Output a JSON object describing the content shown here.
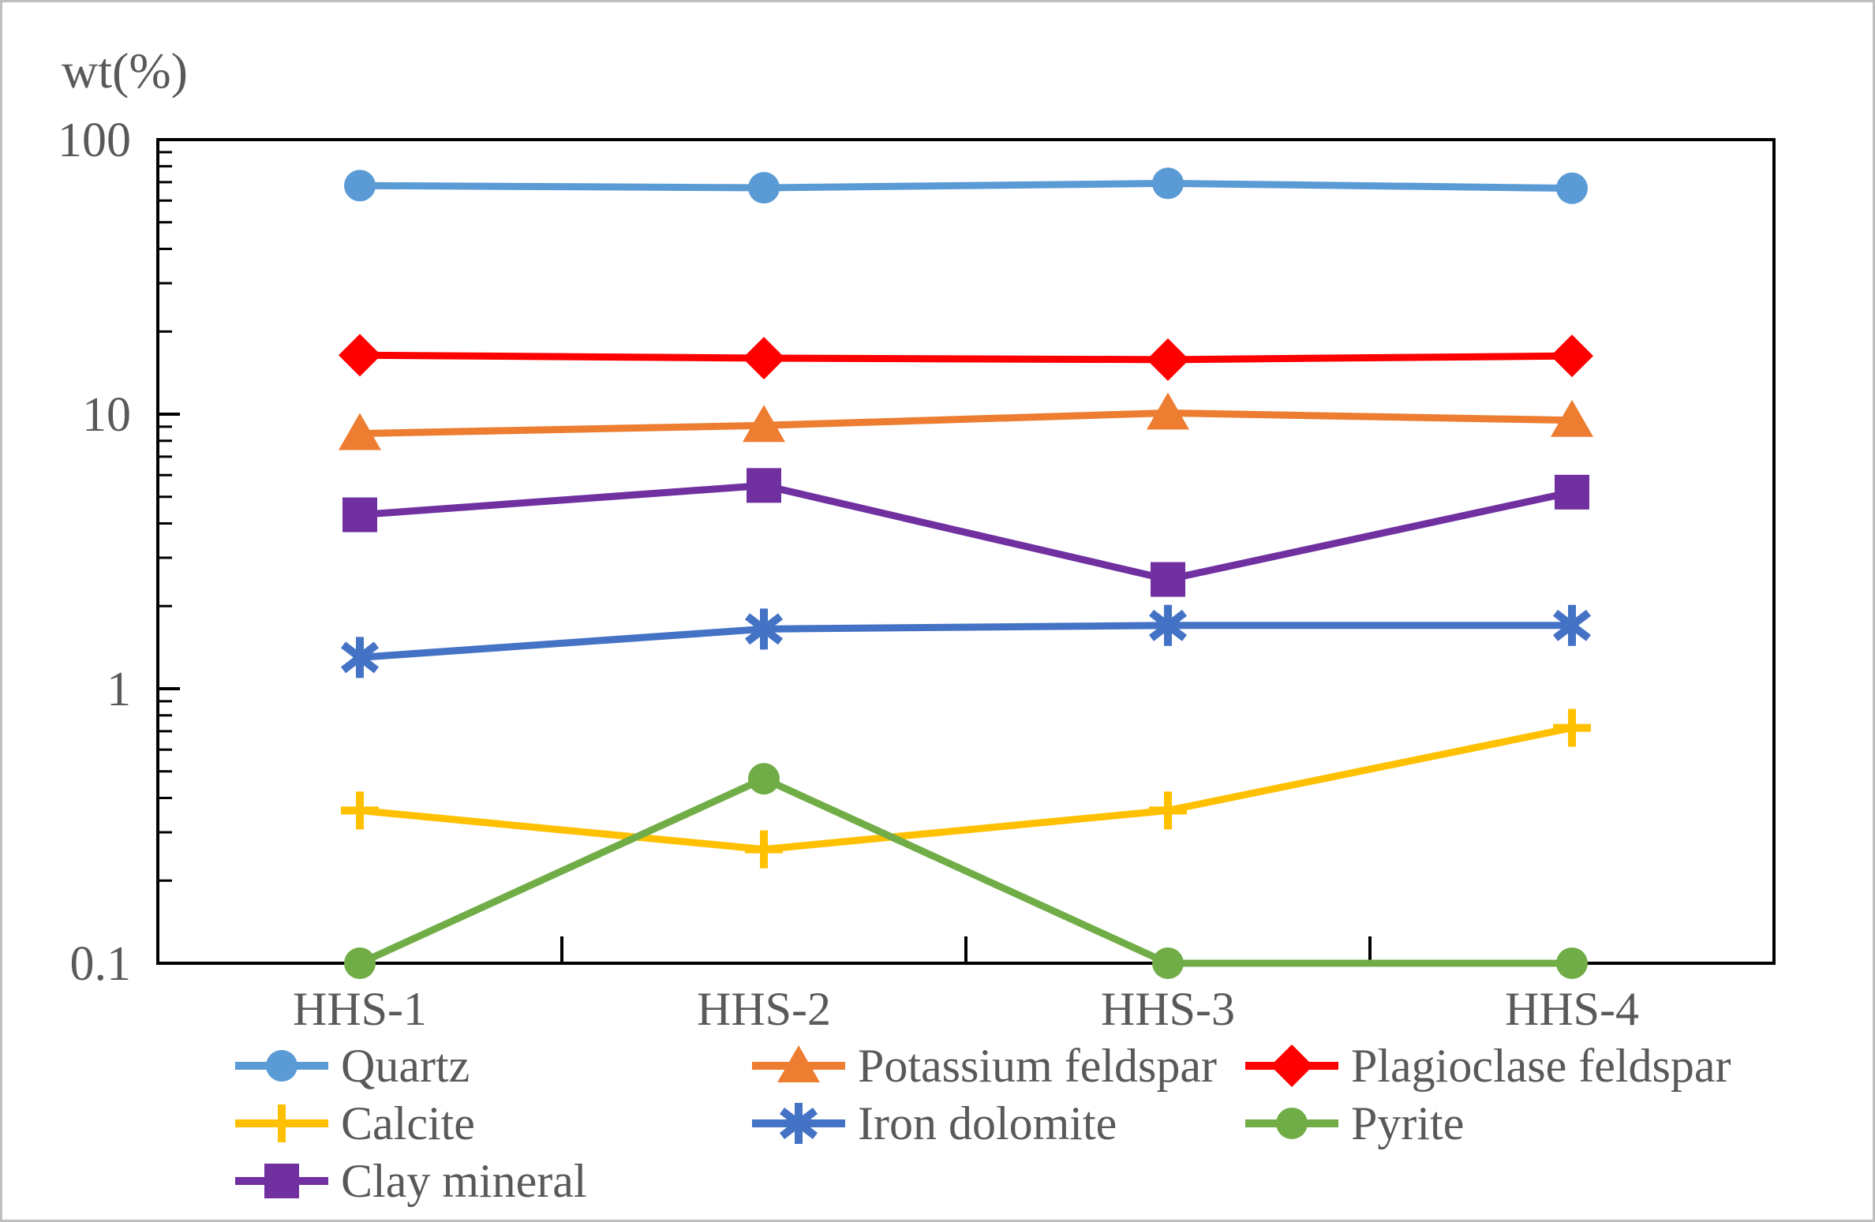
{
  "figure": {
    "background": "#FFFFFF",
    "border_color": "#BFBFBF",
    "axis_line_color": "#000000",
    "text_color": "#595959"
  },
  "chart_data": {
    "type": "line",
    "title": "",
    "ylabel": "wt(%)",
    "xlabel": "",
    "y_scale": "log",
    "ylim": [
      0.1,
      100
    ],
    "y_tick_labels": [
      "100",
      "10",
      "1",
      "0.1"
    ],
    "grid": false,
    "legend_position": "bottom",
    "legend_columns": 3,
    "categories": [
      "HHS-1",
      "HHS-2",
      "HHS-3",
      "HHS-4"
    ],
    "series": [
      {
        "name": "Quartz",
        "color": "#5B9BD5",
        "marker": "circle",
        "values": [
          68.0,
          66.8,
          69.3,
          66.5
        ]
      },
      {
        "name": "Potassium feldspar",
        "color": "#ED7D31",
        "marker": "triangle",
        "values": [
          8.5,
          9.1,
          10.1,
          9.5
        ]
      },
      {
        "name": "Plagioclase feldspar",
        "color": "#FF0000",
        "marker": "diamond",
        "values": [
          16.4,
          16.0,
          15.8,
          16.3
        ]
      },
      {
        "name": "Calcite",
        "color": "#FFC000",
        "marker": "plus",
        "values": [
          0.36,
          0.26,
          0.36,
          0.72
        ]
      },
      {
        "name": "Iron dolomite",
        "color": "#4472C4",
        "marker": "asterisk",
        "values": [
          1.3,
          1.65,
          1.7,
          1.7
        ]
      },
      {
        "name": "Pyrite",
        "color": "#70AD47",
        "marker": "circle",
        "values": [
          0.1,
          0.47,
          0.1,
          0.1
        ]
      },
      {
        "name": "Clay mineral",
        "color": "#7030A0",
        "marker": "square",
        "values": [
          4.3,
          5.5,
          2.5,
          5.2
        ]
      }
    ]
  }
}
